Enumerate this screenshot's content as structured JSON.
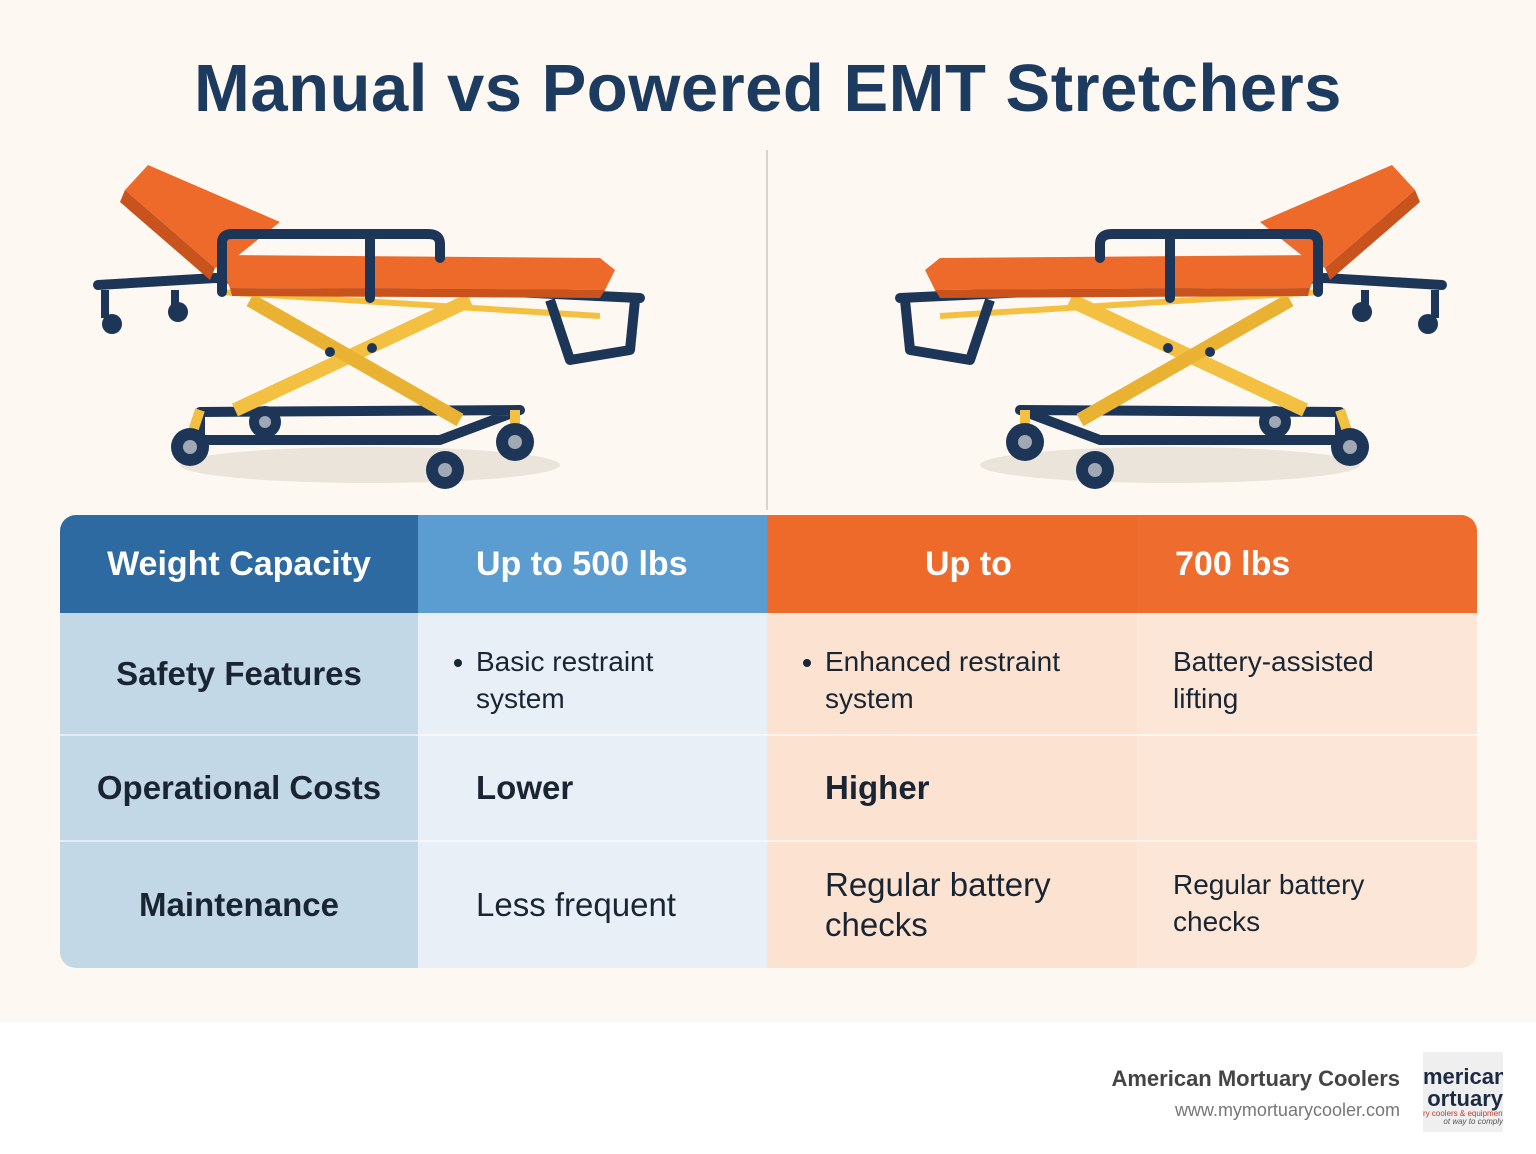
{
  "header": {
    "title": "Manual vs Powered EMT Stretchers"
  },
  "table": {
    "rows": [
      [
        "Weight Capacity",
        "Up to 500 lbs",
        "Up to",
        "700 lbs"
      ],
      [
        "Safety Features",
        "Basic restraint system",
        "Enhanced restraint system",
        "Battery-assisted lifting"
      ],
      [
        "Operational Costs",
        "Lower",
        "Higher",
        null
      ],
      [
        "Maintenance",
        "Less frequent",
        "Regular battery checks",
        "Regular battery checks"
      ]
    ]
  },
  "footer": {
    "company": "American Mortuary Coolers",
    "url": "www.mymortuarycooler.com"
  },
  "logo": {
    "lines": [
      "merican",
      "ortuary",
      "ry coolers & equipment",
      "ot way to comply"
    ]
  }
}
